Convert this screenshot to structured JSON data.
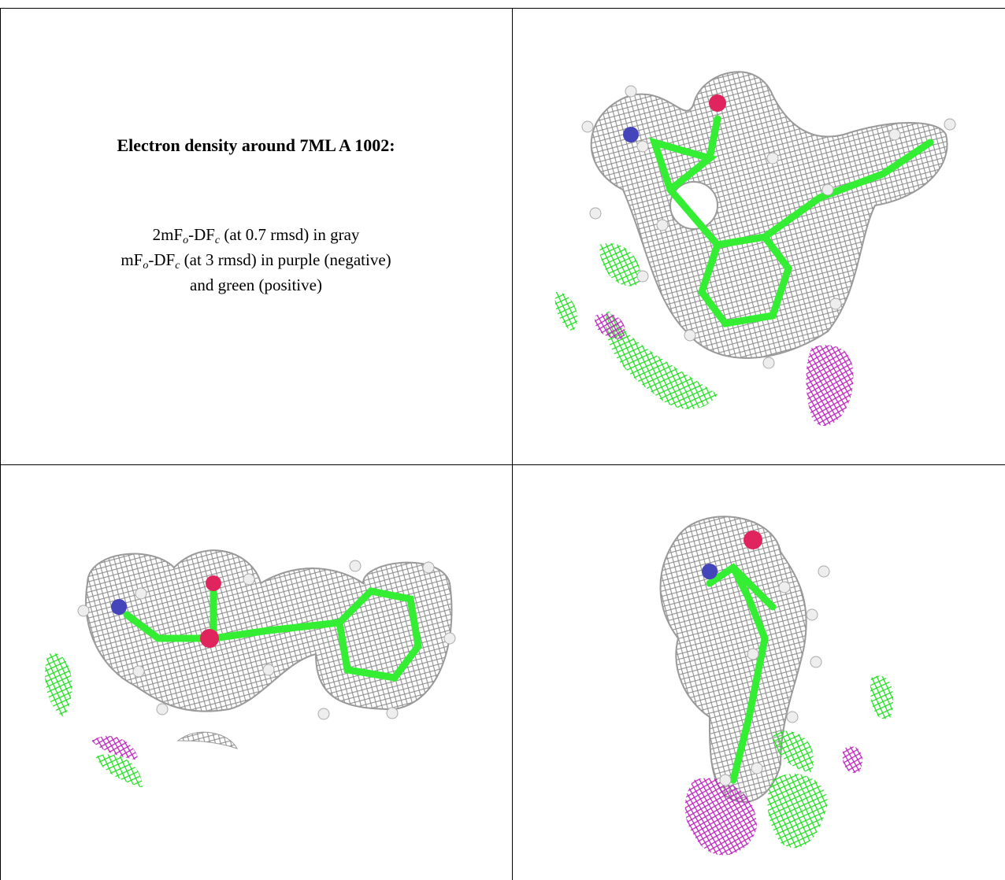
{
  "legend": {
    "title": "Electron density around 7ML A 1002:",
    "lines": [
      {
        "parts": [
          "2mF",
          "o",
          "-DF",
          "c",
          " (at 0.7 rmsd) in gray"
        ]
      },
      {
        "parts": [
          "mF",
          "o",
          "-DF",
          "c",
          " (at 3 rmsd) in purple (negative)"
        ]
      },
      {
        "parts": [
          "and green (positive)"
        ]
      }
    ]
  }
}
